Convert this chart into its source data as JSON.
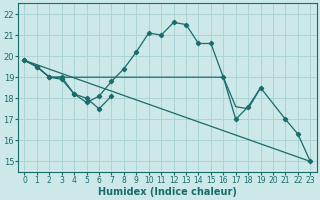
{
  "bg_color": "#cce8e8",
  "line_color": "#1a6b6b",
  "grid_color": "#add4d4",
  "xlabel": "Humidex (Indice chaleur)",
  "xlabel_fontsize": 7,
  "ylim": [
    14.5,
    22.5
  ],
  "xlim": [
    -0.5,
    23.5
  ],
  "yticks": [
    15,
    16,
    17,
    18,
    19,
    20,
    21,
    22
  ],
  "xticks": [
    0,
    1,
    2,
    3,
    4,
    5,
    6,
    7,
    8,
    9,
    10,
    11,
    12,
    13,
    14,
    15,
    16,
    17,
    18,
    19,
    20,
    21,
    22,
    23
  ],
  "series": [
    {
      "x": [
        0,
        1,
        2,
        3,
        4,
        5,
        6,
        7
      ],
      "y": [
        19.8,
        19.5,
        19.0,
        19.0,
        18.2,
        18.0,
        17.5,
        18.1
      ],
      "marker": true
    },
    {
      "x": [
        0,
        1,
        2,
        3,
        4,
        5,
        6,
        7,
        8,
        9,
        10,
        11,
        12,
        13,
        14,
        15,
        16,
        17,
        18,
        19,
        21,
        22,
        23
      ],
      "y": [
        19.8,
        19.5,
        19.0,
        18.9,
        18.2,
        17.8,
        18.1,
        18.8,
        19.4,
        20.2,
        21.1,
        21.0,
        21.6,
        21.5,
        20.6,
        20.6,
        19.0,
        17.0,
        17.6,
        18.5,
        17.0,
        16.3,
        15.0
      ],
      "marker": true
    },
    {
      "x": [
        0,
        23
      ],
      "y": [
        19.8,
        15.0
      ],
      "marker": false
    },
    {
      "x": [
        0,
        1,
        2,
        16,
        17,
        18,
        19
      ],
      "y": [
        19.8,
        19.5,
        19.0,
        19.0,
        17.6,
        17.5,
        18.5
      ],
      "marker": false
    }
  ]
}
